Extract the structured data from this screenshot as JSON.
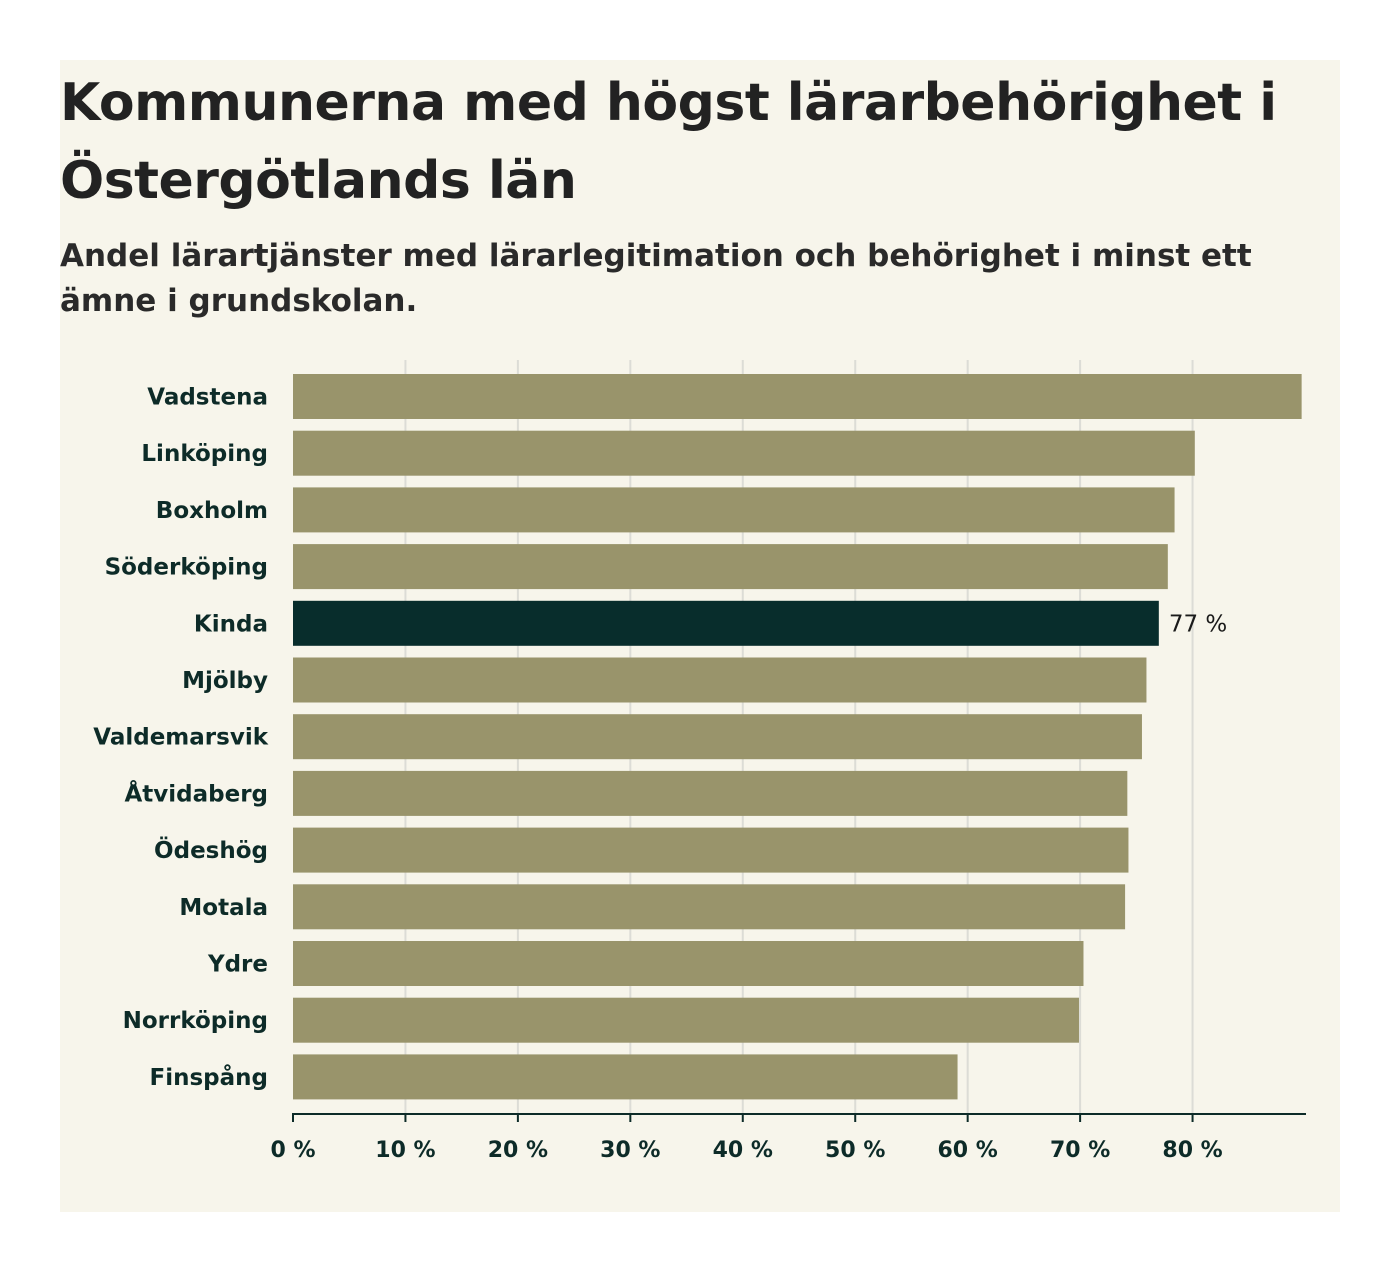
{
  "chart_data": {
    "type": "bar",
    "orientation": "horizontal",
    "title": "Kommunerna med högst lärarbehörighet i Östergötlands län",
    "subtitle": "Andel lärartjänster med lärarlegitimation och behörighet i minst ett ämne i grundskolan.",
    "categories": [
      "Vadstena",
      "Linköping",
      "Boxholm",
      "Söderköping",
      "Kinda",
      "Mjölby",
      "Valdemarsvik",
      "Åtvidaberg",
      "Ödeshög",
      "Motala",
      "Ydre",
      "Norrköping",
      "Finspång"
    ],
    "values": [
      89.7,
      80.2,
      78.4,
      77.8,
      77,
      75.9,
      75.5,
      74.2,
      74.3,
      74.0,
      70.3,
      69.9,
      59.1
    ],
    "highlight_index": 4,
    "data_labels": [
      {
        "index": 4,
        "text": "77 %"
      }
    ],
    "xlim": [
      0,
      90
    ],
    "x_ticks": [
      0,
      10,
      20,
      30,
      40,
      50,
      60,
      70,
      80
    ],
    "x_tick_labels": [
      "0 %",
      "10 %",
      "20 %",
      "30 %",
      "40 %",
      "50 %",
      "60 %",
      "70 %",
      "80 %"
    ],
    "xlabel": "",
    "ylabel": "",
    "grid": true,
    "colors": {
      "bar": "#99946b",
      "highlight": "#082d2c",
      "grid": "#dcdcd6",
      "axis": "#0d2b28",
      "background": "#f7f5eb"
    }
  }
}
